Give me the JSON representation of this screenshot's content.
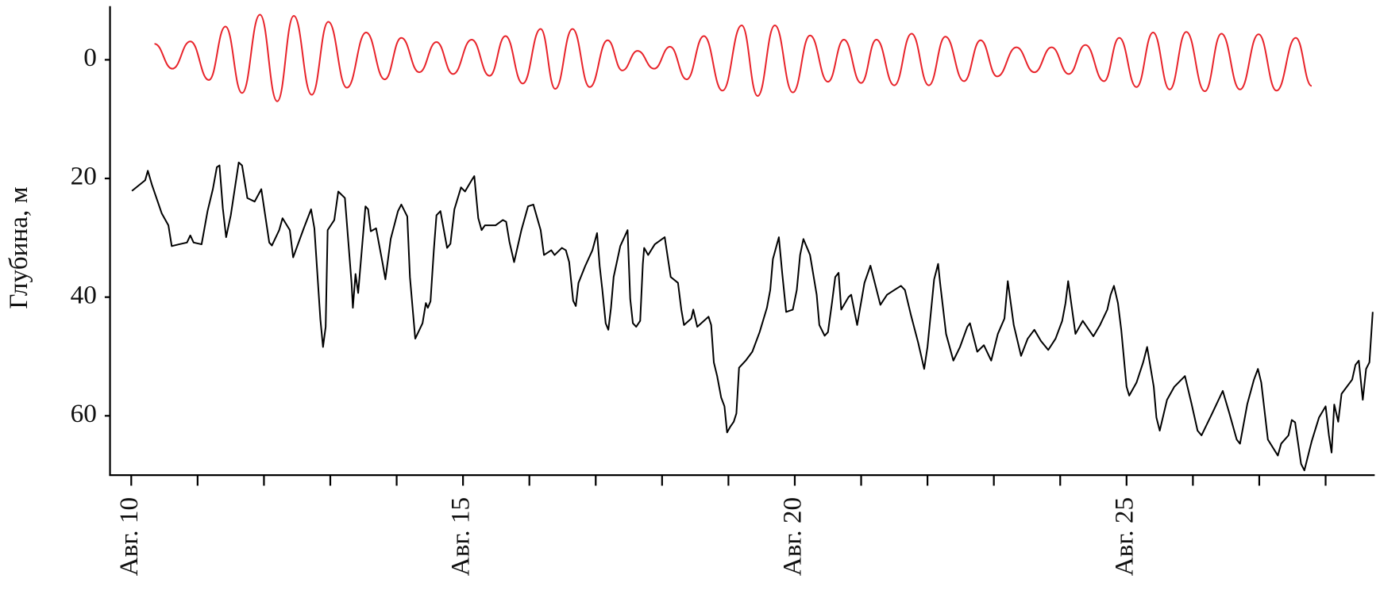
{
  "chart_data": {
    "type": "line",
    "ylabel": "Глубина, м",
    "xlim": [
      9.68,
      28.74
    ],
    "xticks": [
      {
        "value": 10,
        "label": "Авг. 10"
      },
      {
        "value": 15,
        "label": "Авг. 15"
      },
      {
        "value": 20,
        "label": "Авг. 20"
      },
      {
        "value": 25,
        "label": "Авг. 25"
      }
    ],
    "xminorticks": [
      11,
      12,
      13,
      14,
      16,
      17,
      18,
      19,
      21,
      22,
      23,
      24,
      26,
      27,
      28
    ],
    "ylim": [
      -9,
      70
    ],
    "y_inverted": true,
    "yticks": [
      0,
      20,
      40,
      60
    ],
    "series": [
      {
        "color": "#e8232a",
        "smooth": true,
        "x": [
          10.35,
          10.62,
          10.89,
          11.17,
          11.42,
          11.67,
          11.94,
          12.2,
          12.45,
          12.72,
          12.97,
          13.25,
          13.54,
          13.82,
          14.07,
          14.34,
          14.6,
          14.85,
          15.13,
          15.4,
          15.64,
          15.9,
          16.17,
          16.39,
          16.65,
          16.91,
          17.18,
          17.4,
          17.63,
          17.88,
          18.12,
          18.37,
          18.63,
          18.91,
          19.2,
          19.44,
          19.7,
          19.97,
          20.23,
          20.5,
          20.74,
          21.0,
          21.23,
          21.5,
          21.76,
          22.02,
          22.27,
          22.55,
          22.8,
          23.05,
          23.34,
          23.61,
          23.87,
          24.13,
          24.38,
          24.66,
          24.89,
          25.15,
          25.4,
          25.65,
          25.9,
          26.18,
          26.43,
          26.71,
          26.99,
          27.26,
          27.55,
          27.79
        ],
        "values": [
          -2.7,
          1.5,
          -3.1,
          3.4,
          -5.6,
          5.6,
          -7.6,
          7.0,
          -7.4,
          5.9,
          -6.4,
          4.7,
          -4.6,
          3.3,
          -3.7,
          2.1,
          -3.0,
          2.4,
          -3.4,
          2.7,
          -4.0,
          4.0,
          -5.2,
          4.9,
          -5.2,
          4.6,
          -3.3,
          1.8,
          -1.5,
          1.5,
          -2.2,
          3.3,
          -4.0,
          5.2,
          -5.8,
          6.1,
          -5.8,
          5.5,
          -4.1,
          3.7,
          -3.4,
          3.9,
          -3.4,
          4.3,
          -4.4,
          4.3,
          -3.9,
          3.6,
          -3.3,
          2.8,
          -2.1,
          2.1,
          -2.1,
          2.4,
          -2.5,
          3.6,
          -3.7,
          4.6,
          -4.6,
          5.0,
          -4.7,
          5.3,
          -4.4,
          5.0,
          -4.3,
          5.2,
          -3.7,
          4.4
        ]
      },
      {
        "color": "#000000",
        "smooth": false,
        "x": [
          10.01,
          10.21,
          10.25,
          10.31,
          10.46,
          10.56,
          10.61,
          10.72,
          10.84,
          10.89,
          10.94,
          11.06,
          11.15,
          11.23,
          11.29,
          11.33,
          11.38,
          11.43,
          11.5,
          11.62,
          11.67,
          11.75,
          11.86,
          11.96,
          12.08,
          12.12,
          12.23,
          12.28,
          12.39,
          12.44,
          12.6,
          12.71,
          12.76,
          12.85,
          12.89,
          12.93,
          12.96,
          13.06,
          13.12,
          13.22,
          13.32,
          13.34,
          13.38,
          13.42,
          13.53,
          13.57,
          13.61,
          13.69,
          13.79,
          13.83,
          13.91,
          14.02,
          14.07,
          14.16,
          14.2,
          14.28,
          14.39,
          14.44,
          14.47,
          14.51,
          14.56,
          14.6,
          14.66,
          14.76,
          14.81,
          14.87,
          14.97,
          15.03,
          15.13,
          15.17,
          15.23,
          15.28,
          15.33,
          15.49,
          15.6,
          15.65,
          15.7,
          15.77,
          15.88,
          15.98,
          16.06,
          16.17,
          16.22,
          16.33,
          16.38,
          16.49,
          16.55,
          16.6,
          16.66,
          16.7,
          16.74,
          16.84,
          16.95,
          17.02,
          17.06,
          17.1,
          17.15,
          17.19,
          17.23,
          17.27,
          17.37,
          17.48,
          17.52,
          17.56,
          17.61,
          17.67,
          17.71,
          17.73,
          17.79,
          17.89,
          18.04,
          18.13,
          18.24,
          18.29,
          18.33,
          18.44,
          18.47,
          18.53,
          18.7,
          18.74,
          18.78,
          18.83,
          18.89,
          18.94,
          18.98,
          19.03,
          19.08,
          19.12,
          19.16,
          19.26,
          19.36,
          19.47,
          19.58,
          19.63,
          19.67,
          19.76,
          19.81,
          19.87,
          19.97,
          20.03,
          20.08,
          20.13,
          20.23,
          20.33,
          20.37,
          20.45,
          20.5,
          20.56,
          20.61,
          20.66,
          20.7,
          20.81,
          20.85,
          20.94,
          21.05,
          21.14,
          21.29,
          21.39,
          21.5,
          21.6,
          21.66,
          21.75,
          21.86,
          21.95,
          22.0,
          22.1,
          22.16,
          22.19,
          22.28,
          22.39,
          22.49,
          22.6,
          22.64,
          22.75,
          22.85,
          22.96,
          23.06,
          23.16,
          23.21,
          23.3,
          23.41,
          23.51,
          23.61,
          23.71,
          23.82,
          23.93,
          24.03,
          24.08,
          24.12,
          24.23,
          24.34,
          24.5,
          24.6,
          24.71,
          24.76,
          24.81,
          24.87,
          24.92,
          25.0,
          25.04,
          25.15,
          25.25,
          25.31,
          25.41,
          25.45,
          25.5,
          25.61,
          25.72,
          25.88,
          25.98,
          26.07,
          26.13,
          26.29,
          26.45,
          26.55,
          26.66,
          26.71,
          26.82,
          26.92,
          26.98,
          27.03,
          27.13,
          27.28,
          27.33,
          27.44,
          27.49,
          27.54,
          27.63,
          27.68,
          27.79,
          27.9,
          28.0,
          28.05,
          28.09,
          28.13,
          28.19,
          28.24,
          28.4,
          28.45,
          28.5,
          28.56,
          28.61,
          28.66,
          28.71
        ],
        "values": [
          22.1,
          20.3,
          18.7,
          21.0,
          25.9,
          27.9,
          31.4,
          31.1,
          30.8,
          29.6,
          30.8,
          31.1,
          25.5,
          21.8,
          18.1,
          17.8,
          25.0,
          29.9,
          26.2,
          17.3,
          17.8,
          23.3,
          23.9,
          21.8,
          30.8,
          31.3,
          28.7,
          26.7,
          28.7,
          33.3,
          28.4,
          25.2,
          28.4,
          43.7,
          48.4,
          45.0,
          28.7,
          27.0,
          22.2,
          23.3,
          37.6,
          41.8,
          36.1,
          39.3,
          24.7,
          25.2,
          28.9,
          28.4,
          34.4,
          37.0,
          30.2,
          25.5,
          24.4,
          26.4,
          36.6,
          47.0,
          44.4,
          41.0,
          41.8,
          40.7,
          32.1,
          26.2,
          25.5,
          31.7,
          31.0,
          25.2,
          21.5,
          22.2,
          20.3,
          19.6,
          26.7,
          28.7,
          27.9,
          27.9,
          27.0,
          27.3,
          30.7,
          34.1,
          28.7,
          24.7,
          24.4,
          28.7,
          32.9,
          32.1,
          32.9,
          31.7,
          32.1,
          34.1,
          40.6,
          41.5,
          37.6,
          34.8,
          32.1,
          29.2,
          34.8,
          38.8,
          44.4,
          45.5,
          41.8,
          36.6,
          31.4,
          28.7,
          40.3,
          44.4,
          45.0,
          44.0,
          34.4,
          31.7,
          32.9,
          31.1,
          29.9,
          36.6,
          37.6,
          42.1,
          44.7,
          43.6,
          42.1,
          45.0,
          43.3,
          44.7,
          51.0,
          53.3,
          56.9,
          58.4,
          62.8,
          61.8,
          61.0,
          59.6,
          51.9,
          50.7,
          49.2,
          45.9,
          41.8,
          38.8,
          33.6,
          29.9,
          35.9,
          42.5,
          42.1,
          38.8,
          32.9,
          30.2,
          32.9,
          39.6,
          44.7,
          46.5,
          45.9,
          41.0,
          36.6,
          35.9,
          42.1,
          40.0,
          39.6,
          44.7,
          37.6,
          34.7,
          41.3,
          39.6,
          38.8,
          38.1,
          38.8,
          43.0,
          47.7,
          52.1,
          48.4,
          37.0,
          34.4,
          37.6,
          46.2,
          50.7,
          48.4,
          45.0,
          44.4,
          49.2,
          48.1,
          50.7,
          46.2,
          43.6,
          37.3,
          44.7,
          49.9,
          47.0,
          45.5,
          47.4,
          48.9,
          47.0,
          44.0,
          41.0,
          37.3,
          46.2,
          44.0,
          46.6,
          44.7,
          42.1,
          39.6,
          38.1,
          41.0,
          45.5,
          55.1,
          56.6,
          54.4,
          51.0,
          48.4,
          55.1,
          60.3,
          62.5,
          57.3,
          55.1,
          53.3,
          58.0,
          62.5,
          63.3,
          59.6,
          55.8,
          59.6,
          64.0,
          64.7,
          58.0,
          53.9,
          52.1,
          54.4,
          64.0,
          66.7,
          64.7,
          63.3,
          60.7,
          61.1,
          68.1,
          69.2,
          64.3,
          60.3,
          58.4,
          63.3,
          66.2,
          58.1,
          61.0,
          56.3,
          53.9,
          51.4,
          50.7,
          57.3,
          52.1,
          51.0,
          42.5
        ]
      }
    ]
  }
}
